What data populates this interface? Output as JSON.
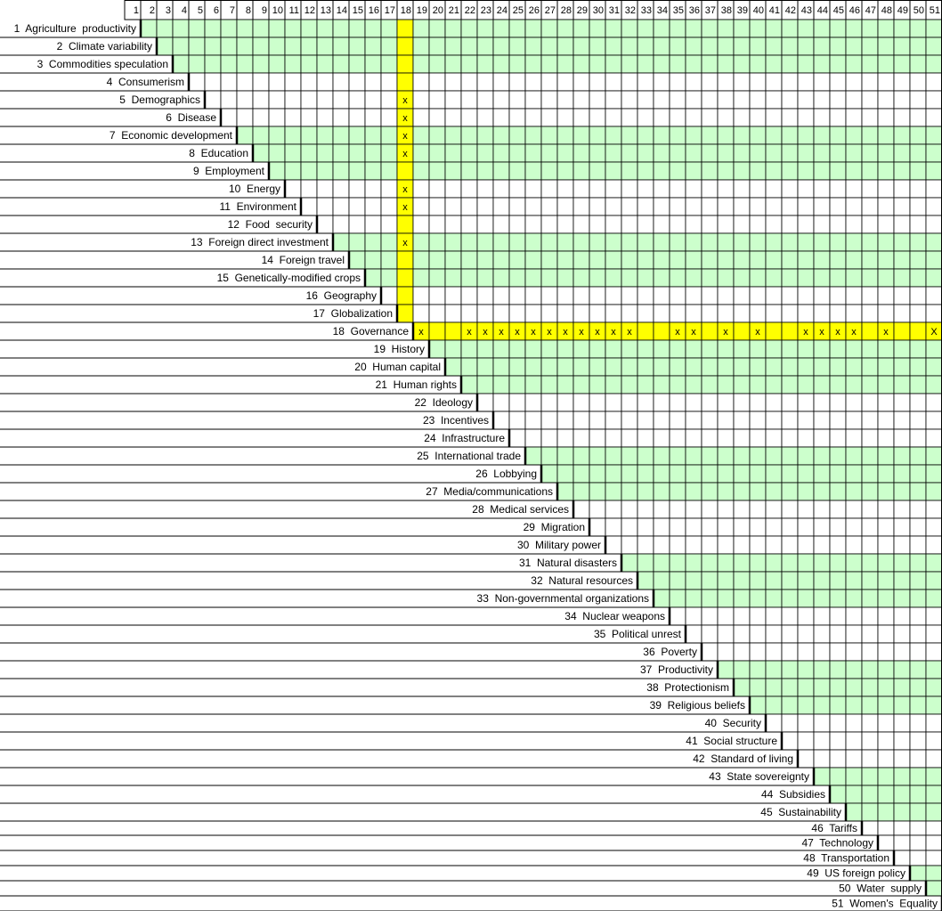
{
  "columns": [
    1,
    2,
    3,
    4,
    5,
    6,
    7,
    8,
    9,
    10,
    11,
    12,
    13,
    14,
    15,
    16,
    17,
    18,
    19,
    20,
    21,
    22,
    23,
    24,
    25,
    26,
    27,
    28,
    29,
    30,
    31,
    32,
    33,
    34,
    35,
    36,
    37,
    38,
    39,
    40,
    41,
    42,
    43,
    44,
    45,
    46,
    47,
    48,
    49,
    50,
    51
  ],
  "rows": [
    {
      "label": "1  Agriculture  productivity"
    },
    {
      "label": "2  Climate variability"
    },
    {
      "label": "3  Commodities speculation"
    },
    {
      "label": "4  Consumerism"
    },
    {
      "label": "5  Demographics",
      "marks": {
        "18": "x"
      }
    },
    {
      "label": "6  Disease",
      "marks": {
        "18": "x"
      }
    },
    {
      "label": "7  Economic development",
      "marks": {
        "18": "x"
      }
    },
    {
      "label": "8  Education",
      "marks": {
        "18": "x"
      }
    },
    {
      "label": "9  Employment"
    },
    {
      "label": "10  Energy",
      "marks": {
        "18": "x"
      }
    },
    {
      "label": "11  Environment",
      "marks": {
        "18": "x"
      }
    },
    {
      "label": "12  Food  security"
    },
    {
      "label": "13  Foreign direct investment",
      "marks": {
        "18": "x"
      }
    },
    {
      "label": "14  Foreign travel"
    },
    {
      "label": "15  Genetically-modified crops"
    },
    {
      "label": "16  Geography"
    },
    {
      "label": "17  Globalization"
    },
    {
      "label": "18  Governance",
      "marks": {
        "19": "x",
        "22": "x",
        "23": "x",
        "24": "x",
        "25": "x",
        "26": "x",
        "27": "x",
        "28": "x",
        "29": "x",
        "30": "x",
        "31": "x",
        "32": "x",
        "35": "x",
        "36": "x",
        "38": "x",
        "40": "x",
        "43": "x",
        "44": "x",
        "45": "x",
        "46": "x",
        "48": "x",
        "51": "X"
      }
    },
    {
      "label": "19  History"
    },
    {
      "label": "20  Human capital"
    },
    {
      "label": "21  Human rights"
    },
    {
      "label": "22  Ideology"
    },
    {
      "label": "23  Incentives"
    },
    {
      "label": "24  Infrastructure"
    },
    {
      "label": "25  International trade"
    },
    {
      "label": "26  Lobbying"
    },
    {
      "label": "27  Media/communications"
    },
    {
      "label": "28  Medical services"
    },
    {
      "label": "29  Migration"
    },
    {
      "label": "30  Military power"
    },
    {
      "label": "31  Natural disasters"
    },
    {
      "label": "32  Natural resources"
    },
    {
      "label": "33  Non-governmental organizations"
    },
    {
      "label": "34  Nuclear weapons"
    },
    {
      "label": "35  Political unrest"
    },
    {
      "label": "36  Poverty"
    },
    {
      "label": "37  Productivity"
    },
    {
      "label": "38  Protectionism"
    },
    {
      "label": "39  Religious beliefs"
    },
    {
      "label": "40  Security"
    },
    {
      "label": "41  Social structure"
    },
    {
      "label": "42  Standard of living"
    },
    {
      "label": "43  State sovereignty"
    },
    {
      "label": "44  Subsidies"
    },
    {
      "label": "45  Sustainability"
    },
    {
      "label": "46  Tariffs"
    },
    {
      "label": "47  Technology"
    },
    {
      "label": "48  Transportation"
    },
    {
      "label": "49  US foreign policy"
    },
    {
      "label": "50  Water  supply"
    },
    {
      "label": "51  Women's  Equality"
    }
  ]
}
